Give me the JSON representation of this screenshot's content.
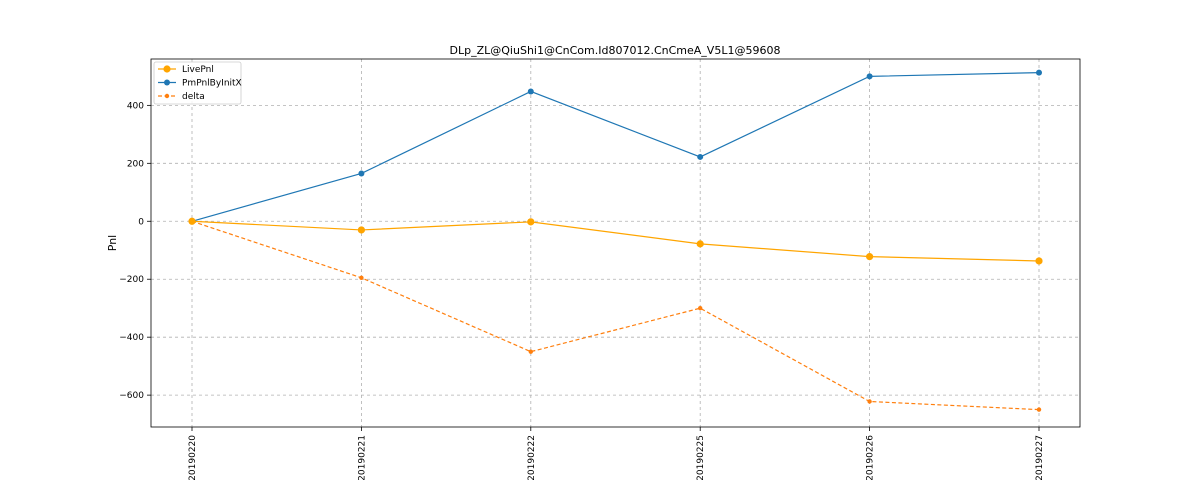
{
  "chart_data": {
    "type": "line",
    "title": "DLp_ZL@QiuShi1@CnCom.Id807012.CnCmeA_V5L1@59608",
    "xlabel": "",
    "ylabel": "Pnl",
    "categories": [
      "20190220",
      "20190221",
      "20190222",
      "20190225",
      "20190226",
      "20190227"
    ],
    "ylim": [
      -710,
      560
    ],
    "yticks": [
      -600,
      -400,
      -200,
      0,
      200,
      400
    ],
    "grid": true,
    "legend_position": "top-left",
    "series": [
      {
        "name": "LivePnl",
        "values": [
          0,
          -30,
          -2,
          -78,
          -122,
          -137
        ],
        "color": "#ffa500",
        "style": "solid",
        "marker": "circle-large"
      },
      {
        "name": "PmPnlByInitX",
        "values": [
          0,
          165,
          448,
          222,
          500,
          513
        ],
        "color": "#1f77b4",
        "style": "solid",
        "marker": "circle"
      },
      {
        "name": "delta",
        "values": [
          0,
          -195,
          -450,
          -300,
          -622,
          -650
        ],
        "color": "#ff7f0e",
        "style": "dashed",
        "marker": "circle-small"
      }
    ]
  }
}
